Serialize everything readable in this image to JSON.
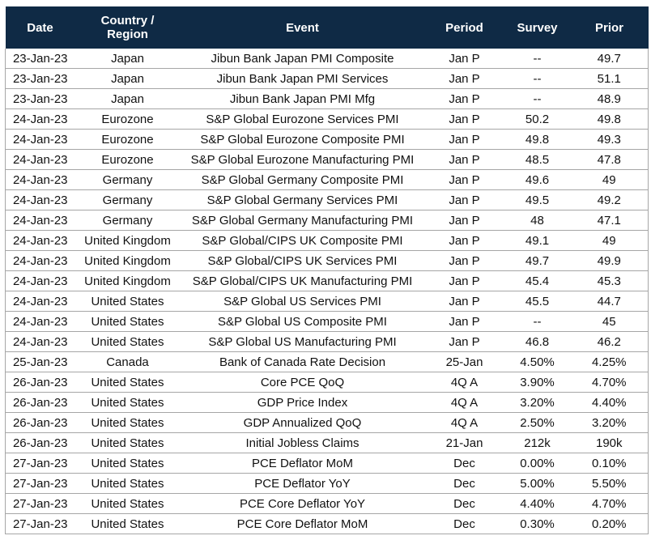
{
  "table": {
    "headers": [
      "Date",
      "Country / Region",
      "Event",
      "Period",
      "Survey",
      "Prior"
    ],
    "rows": [
      [
        "23-Jan-23",
        "Japan",
        "Jibun Bank Japan PMI Composite",
        "Jan P",
        "--",
        "49.7"
      ],
      [
        "23-Jan-23",
        "Japan",
        "Jibun Bank Japan PMI Services",
        "Jan P",
        "--",
        "51.1"
      ],
      [
        "23-Jan-23",
        "Japan",
        "Jibun Bank Japan PMI Mfg",
        "Jan P",
        "--",
        "48.9"
      ],
      [
        "24-Jan-23",
        "Eurozone",
        "S&P Global Eurozone Services PMI",
        "Jan P",
        "50.2",
        "49.8"
      ],
      [
        "24-Jan-23",
        "Eurozone",
        "S&P Global Eurozone Composite PMI",
        "Jan P",
        "49.8",
        "49.3"
      ],
      [
        "24-Jan-23",
        "Eurozone",
        "S&P Global Eurozone Manufacturing PMI",
        "Jan P",
        "48.5",
        "47.8"
      ],
      [
        "24-Jan-23",
        "Germany",
        "S&P Global Germany Composite PMI",
        "Jan P",
        "49.6",
        "49"
      ],
      [
        "24-Jan-23",
        "Germany",
        "S&P Global Germany Services PMI",
        "Jan P",
        "49.5",
        "49.2"
      ],
      [
        "24-Jan-23",
        "Germany",
        "S&P Global Germany Manufacturing PMI",
        "Jan P",
        "48",
        "47.1"
      ],
      [
        "24-Jan-23",
        "United Kingdom",
        "S&P Global/CIPS UK Composite PMI",
        "Jan P",
        "49.1",
        "49"
      ],
      [
        "24-Jan-23",
        "United Kingdom",
        "S&P Global/CIPS UK Services PMI",
        "Jan P",
        "49.7",
        "49.9"
      ],
      [
        "24-Jan-23",
        "United Kingdom",
        "S&P Global/CIPS UK Manufacturing PMI",
        "Jan P",
        "45.4",
        "45.3"
      ],
      [
        "24-Jan-23",
        "United States",
        "S&P Global US Services PMI",
        "Jan P",
        "45.5",
        "44.7"
      ],
      [
        "24-Jan-23",
        "United States",
        "S&P Global US Composite PMI",
        "Jan P",
        "--",
        "45"
      ],
      [
        "24-Jan-23",
        "United States",
        "S&P Global US Manufacturing PMI",
        "Jan P",
        "46.8",
        "46.2"
      ],
      [
        "25-Jan-23",
        "Canada",
        "Bank of Canada Rate Decision",
        "25-Jan",
        "4.50%",
        "4.25%"
      ],
      [
        "26-Jan-23",
        "United States",
        "Core PCE QoQ",
        "4Q A",
        "3.90%",
        "4.70%"
      ],
      [
        "26-Jan-23",
        "United States",
        "GDP Price Index",
        "4Q A",
        "3.20%",
        "4.40%"
      ],
      [
        "26-Jan-23",
        "United States",
        "GDP Annualized QoQ",
        "4Q A",
        "2.50%",
        "3.20%"
      ],
      [
        "26-Jan-23",
        "United States",
        "Initial Jobless Claims",
        "21-Jan",
        "212k",
        "190k"
      ],
      [
        "27-Jan-23",
        "United States",
        "PCE Deflator MoM",
        "Dec",
        "0.00%",
        "0.10%"
      ],
      [
        "27-Jan-23",
        "United States",
        "PCE Deflator YoY",
        "Dec",
        "5.00%",
        "5.50%"
      ],
      [
        "27-Jan-23",
        "United States",
        "PCE Core Deflator YoY",
        "Dec",
        "4.40%",
        "4.70%"
      ],
      [
        "27-Jan-23",
        "United States",
        "PCE Core Deflator MoM",
        "Dec",
        "0.30%",
        "0.20%"
      ]
    ]
  }
}
